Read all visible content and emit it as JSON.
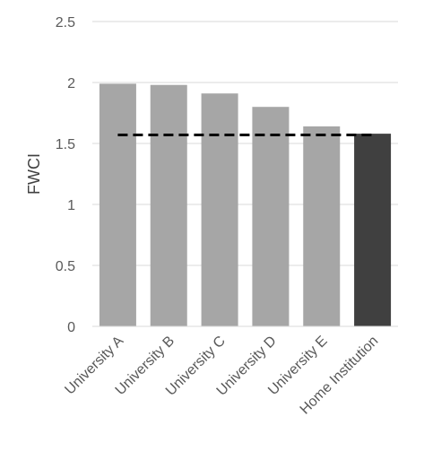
{
  "chart_data": {
    "type": "bar",
    "title": "",
    "xlabel": "",
    "ylabel": "FWCI",
    "ylim": [
      0,
      2.5
    ],
    "yticks": [
      "0",
      "0.5",
      "1",
      "1.5",
      "2",
      "2.5"
    ],
    "grid": true,
    "categories": [
      "University A",
      "University B",
      "University C",
      "University D",
      "University E",
      "Home Institution"
    ],
    "values": [
      1.99,
      1.98,
      1.91,
      1.8,
      1.64,
      1.58
    ],
    "bar_colors": [
      "#a6a6a6",
      "#a6a6a6",
      "#a6a6a6",
      "#a6a6a6",
      "#a6a6a6",
      "#404040"
    ],
    "reference_line": {
      "value": 1.57,
      "style": "dashed",
      "color": "#000000"
    }
  }
}
